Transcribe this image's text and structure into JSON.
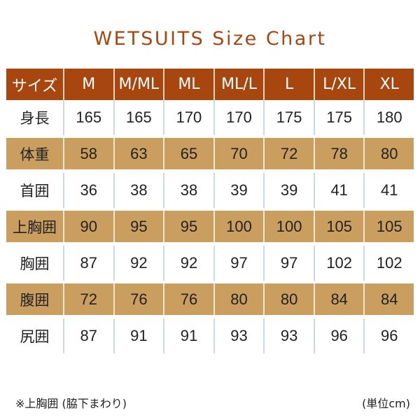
{
  "title": "WETSUITS Size Chart",
  "colors": {
    "header_bg": "#a8460f",
    "title": "#a8460f",
    "tan_row": "#c99e5f",
    "text": "#222222"
  },
  "table": {
    "header": [
      "サイズ",
      "M",
      "M/ML",
      "ML",
      "ML/L",
      "L",
      "L/XL",
      "XL"
    ],
    "rows": [
      {
        "label": "身長",
        "values": [
          "165",
          "165",
          "170",
          "170",
          "175",
          "175",
          "180"
        ]
      },
      {
        "label": "体重",
        "values": [
          "58",
          "63",
          "65",
          "70",
          "72",
          "78",
          "80"
        ]
      },
      {
        "label": "首囲",
        "values": [
          "36",
          "38",
          "38",
          "39",
          "39",
          "41",
          "41"
        ]
      },
      {
        "label": "上胸囲",
        "values": [
          "90",
          "95",
          "95",
          "100",
          "100",
          "105",
          "105"
        ]
      },
      {
        "label": "胸囲",
        "values": [
          "87",
          "92",
          "92",
          "97",
          "97",
          "102",
          "102"
        ]
      },
      {
        "label": "腹囲",
        "values": [
          "72",
          "76",
          "76",
          "80",
          "80",
          "84",
          "84"
        ]
      },
      {
        "label": "尻囲",
        "values": [
          "87",
          "91",
          "91",
          "93",
          "93",
          "96",
          "96"
        ]
      }
    ]
  },
  "footer": {
    "note": "※上胸囲 (脇下まわり)",
    "unit": "(単位cm)"
  }
}
